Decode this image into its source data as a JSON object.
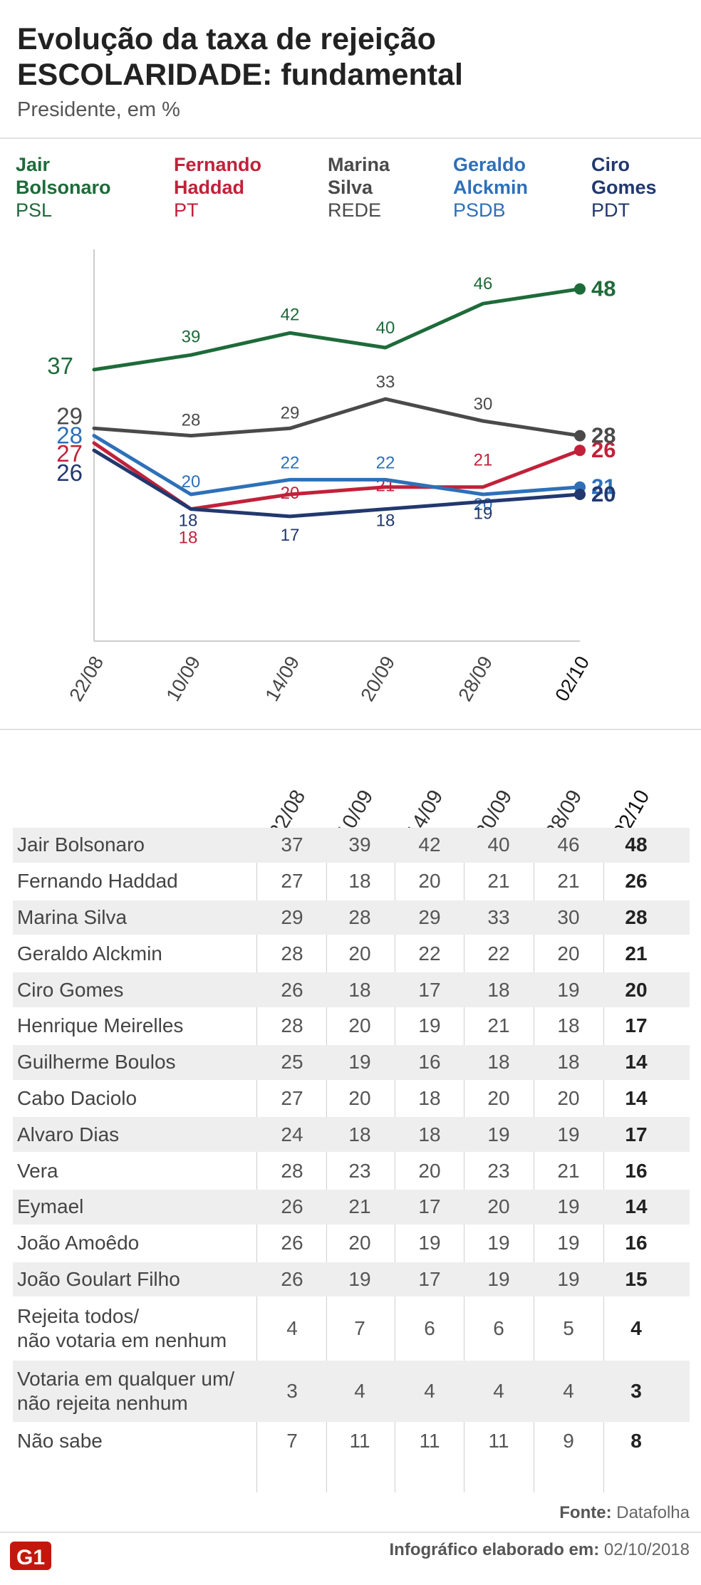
{
  "header": {
    "title_line1": "Evolução da taxa de rejeição",
    "title_line2": "ESCOLARIDADE: fundamental",
    "subtitle": "Presidente, em %"
  },
  "legend": [
    {
      "name": "Jair Bolsonaro",
      "party": "PSL",
      "color": "#1e6b3a"
    },
    {
      "name": "Fernando Haddad",
      "party": "PT",
      "color": "#c1213a"
    },
    {
      "name": "Marina Silva",
      "party": "REDE",
      "color": "#4a4a4a"
    },
    {
      "name": "Geraldo Alckmin",
      "party": "PSDB",
      "color": "#2e70b8"
    },
    {
      "name": "Ciro Gomes",
      "party": "PDT",
      "color": "#22386e"
    }
  ],
  "chart_data": {
    "type": "line",
    "categories": [
      "22/08",
      "10/09",
      "14/09",
      "20/09",
      "28/09",
      "02/10"
    ],
    "ylim": [
      0,
      55
    ],
    "grid": false,
    "series": [
      {
        "name": "Jair Bolsonaro",
        "values": [
          37,
          39,
          42,
          40,
          46,
          48
        ],
        "color": "#1e6b3a"
      },
      {
        "name": "Fernando Haddad",
        "values": [
          27,
          18,
          20,
          21,
          21,
          26
        ],
        "color": "#c1213a"
      },
      {
        "name": "Marina Silva",
        "values": [
          29,
          28,
          29,
          33,
          30,
          28
        ],
        "color": "#4a4a4a"
      },
      {
        "name": "Geraldo Alckmin",
        "values": [
          28,
          20,
          22,
          22,
          20,
          21
        ],
        "color": "#2e70b8"
      },
      {
        "name": "Ciro Gomes",
        "values": [
          26,
          18,
          17,
          18,
          19,
          20
        ],
        "color": "#22386e"
      }
    ]
  },
  "table": {
    "headers": [
      "22/08",
      "10/09",
      "14/09",
      "20/09",
      "28/09",
      "02/10"
    ],
    "rows": [
      {
        "name": [
          "Jair Bolsonaro"
        ],
        "values": [
          "37",
          "39",
          "42",
          "40",
          "46",
          "48"
        ]
      },
      {
        "name": [
          "Fernando Haddad"
        ],
        "values": [
          "27",
          "18",
          "20",
          "21",
          "21",
          "26"
        ]
      },
      {
        "name": [
          "Marina Silva"
        ],
        "values": [
          "29",
          "28",
          "29",
          "33",
          "30",
          "28"
        ]
      },
      {
        "name": [
          "Geraldo Alckmin"
        ],
        "values": [
          "28",
          "20",
          "22",
          "22",
          "20",
          "21"
        ]
      },
      {
        "name": [
          "Ciro Gomes"
        ],
        "values": [
          "26",
          "18",
          "17",
          "18",
          "19",
          "20"
        ]
      },
      {
        "name": [
          "Henrique Meirelles"
        ],
        "values": [
          "28",
          "20",
          "19",
          "21",
          "18",
          "17"
        ]
      },
      {
        "name": [
          "Guilherme Boulos"
        ],
        "values": [
          "25",
          "19",
          "16",
          "18",
          "18",
          "14"
        ]
      },
      {
        "name": [
          "Cabo Daciolo"
        ],
        "values": [
          "27",
          "20",
          "18",
          "20",
          "20",
          "14"
        ]
      },
      {
        "name": [
          "Alvaro Dias"
        ],
        "values": [
          "24",
          "18",
          "18",
          "19",
          "19",
          "17"
        ]
      },
      {
        "name": [
          "Vera"
        ],
        "values": [
          "28",
          "23",
          "20",
          "23",
          "21",
          "16"
        ]
      },
      {
        "name": [
          "Eymael"
        ],
        "values": [
          "26",
          "21",
          "17",
          "20",
          "19",
          "14"
        ]
      },
      {
        "name": [
          "João Amoêdo"
        ],
        "values": [
          "26",
          "20",
          "19",
          "19",
          "19",
          "16"
        ]
      },
      {
        "name": [
          "João Goulart Filho"
        ],
        "values": [
          "26",
          "19",
          "17",
          "19",
          "19",
          "15"
        ]
      },
      {
        "name": [
          "Rejeita todos/",
          "não votaria em nenhum"
        ],
        "values": [
          "4",
          "7",
          "6",
          "6",
          "5",
          "4"
        ]
      },
      {
        "name": [
          "Votaria em qualquer um/",
          "não rejeita nenhum"
        ],
        "values": [
          "3",
          "4",
          "4",
          "4",
          "4",
          "3"
        ]
      },
      {
        "name": [
          "Não sabe"
        ],
        "values": [
          "7",
          "11",
          "11",
          "11",
          "9",
          "8"
        ]
      }
    ]
  },
  "footer": {
    "source_label": "Fonte:",
    "source_value": "Datafolha",
    "logo_text": "G1",
    "credit_label": "Infográfico elaborado em:",
    "credit_value": "02/10/2018"
  }
}
